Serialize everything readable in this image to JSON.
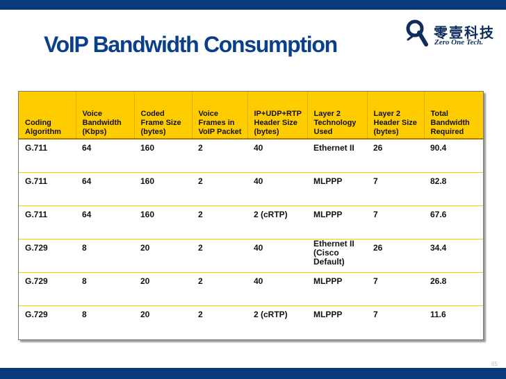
{
  "slide": {
    "title": "VoIP Bandwidth Consumption",
    "page_number": "65"
  },
  "logo": {
    "chinese_name": "零壹科技",
    "english_name": "Zero One Tech."
  },
  "table": {
    "headers": [
      "Coding Algorithm",
      "Voice Bandwidth (Kbps)",
      "Coded Frame Size (bytes)",
      "Voice Frames in VoIP Packet",
      "IP+UDP+RTP Header Size (bytes)",
      "Layer 2 Technology Used",
      "Layer 2 Header Size (bytes)",
      "Total Bandwidth Required"
    ],
    "rows": [
      [
        "G.711",
        "64",
        "160",
        "2",
        "40",
        "Ethernet II",
        "26",
        "90.4"
      ],
      [
        "G.711",
        "64",
        "160",
        "2",
        "40",
        "MLPPP",
        "7",
        "82.8"
      ],
      [
        "G.711",
        "64",
        "160",
        "2",
        "2 (cRTP)",
        "MLPPP",
        "7",
        "67.6"
      ],
      [
        "G.729",
        "8",
        "20",
        "2",
        "40",
        "Ethernet II (Cisco Default)",
        "26",
        "34.4"
      ],
      [
        "G.729",
        "8",
        "20",
        "2",
        "40",
        "MLPPP",
        "7",
        "26.8"
      ],
      [
        "G.729",
        "8",
        "20",
        "2",
        "2 (cRTP)",
        "MLPPP",
        "7",
        "11.6"
      ]
    ]
  },
  "colors": {
    "header_fill": "#ffcc00",
    "title_blue": "#0a3f8c",
    "bar_blue": "#0b3a7a"
  }
}
